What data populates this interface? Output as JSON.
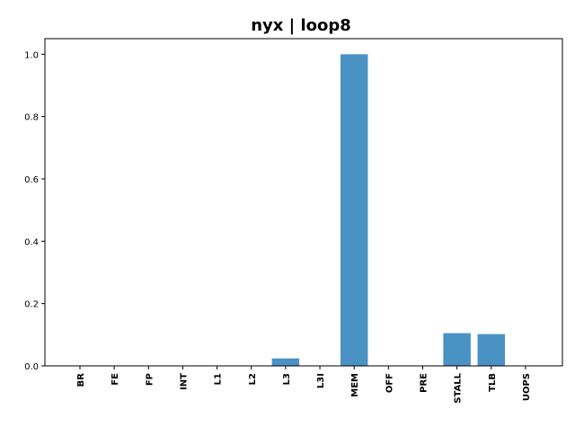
{
  "chart_data": {
    "type": "bar",
    "title": "nyx | loop8",
    "xlabel": "",
    "ylabel": "",
    "categories": [
      "BR",
      "FE",
      "FP",
      "INT",
      "L1",
      "L2",
      "L3",
      "L3I",
      "MEM",
      "OFF",
      "PRE",
      "STALL",
      "TLB",
      "UOPS"
    ],
    "values": [
      0,
      0,
      0,
      0,
      0,
      0,
      0.024,
      0,
      1.0,
      0,
      0,
      0.105,
      0.102,
      0
    ],
    "ylim": [
      0,
      1.05
    ],
    "yticks": [
      "0.0",
      "0.2",
      "0.4",
      "0.6",
      "0.8",
      "1.0"
    ],
    "grid": false,
    "bar_color": "#4a92c4"
  }
}
